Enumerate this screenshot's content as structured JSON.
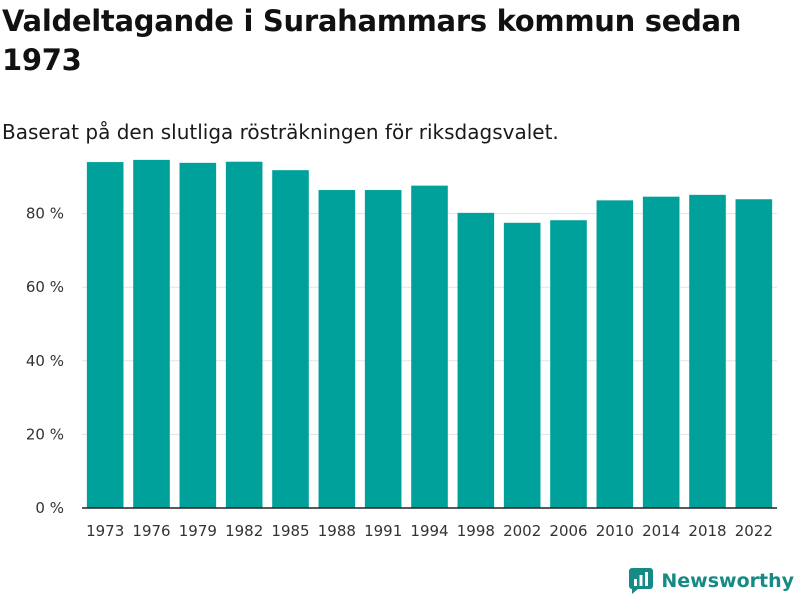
{
  "brand": {
    "name": "Newsworthy",
    "color": "#168a85"
  },
  "chart_data": {
    "type": "bar",
    "title": "Valdeltagande i Surahammars kommun sedan 1973",
    "subtitle": "Baserat på den slutliga rösträkningen för riksdagsvalet.",
    "categories": [
      "1973",
      "1976",
      "1979",
      "1982",
      "1985",
      "1988",
      "1991",
      "1994",
      "1998",
      "2002",
      "2006",
      "2010",
      "2014",
      "2018",
      "2022"
    ],
    "values": [
      94.0,
      94.6,
      93.8,
      94.1,
      91.8,
      86.4,
      86.4,
      87.6,
      80.2,
      77.5,
      78.2,
      83.6,
      84.6,
      85.1,
      83.9
    ],
    "y_ticks": [
      0,
      20,
      40,
      60,
      80
    ],
    "y_tick_labels": [
      "0 %",
      "20 %",
      "40 %",
      "60 %",
      "80 %"
    ],
    "ylim": [
      0,
      100
    ],
    "xlabel": "",
    "ylabel": "",
    "bar_color": "#00a19a",
    "grid": true
  }
}
